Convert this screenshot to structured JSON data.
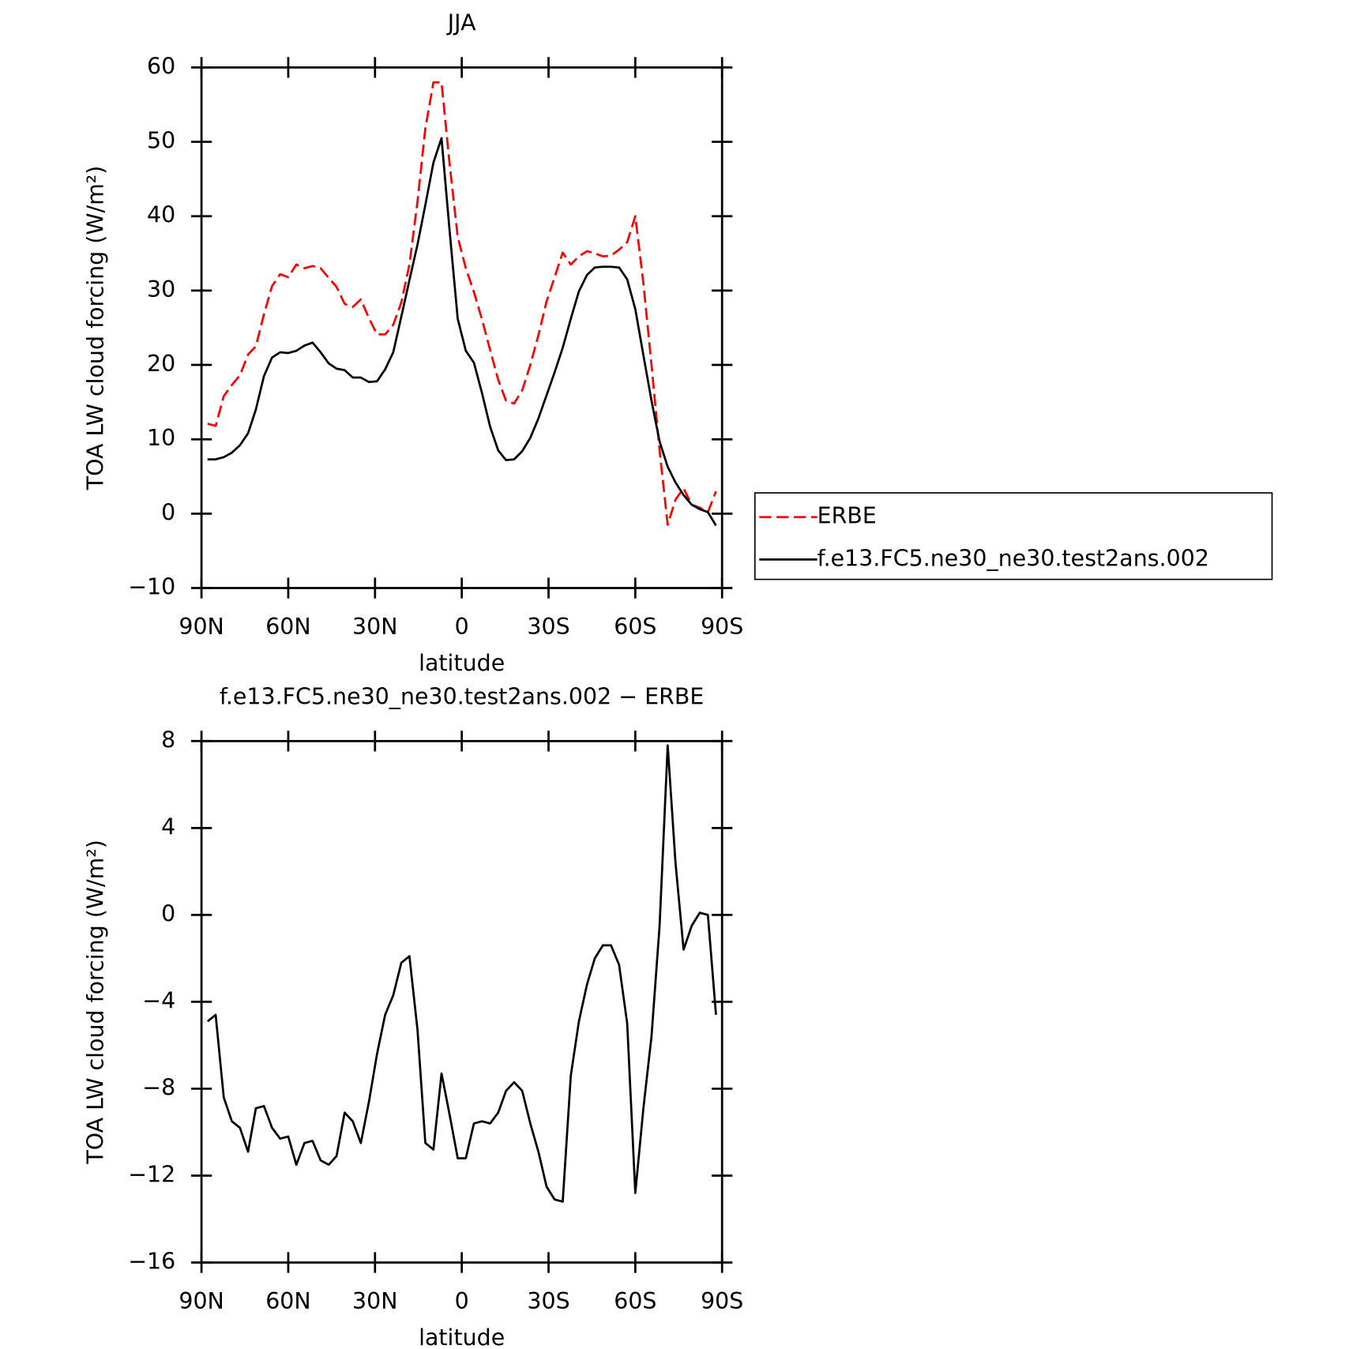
{
  "chart_data": [
    {
      "type": "line",
      "title": "JJA",
      "xlabel": "latitude",
      "ylabel": "TOA LW cloud forcing (W/m²)",
      "x": [
        87.9,
        85.1,
        82.3,
        79.5,
        76.7,
        73.9,
        71.2,
        68.4,
        65.6,
        62.8,
        60.0,
        57.2,
        54.4,
        51.6,
        48.8,
        46.0,
        43.3,
        40.5,
        37.7,
        34.9,
        32.1,
        29.3,
        26.5,
        23.7,
        20.9,
        18.1,
        15.3,
        12.6,
        9.8,
        7.0,
        4.2,
        1.4,
        -1.4,
        -4.2,
        -7.0,
        -9.8,
        -12.6,
        -15.3,
        -18.1,
        -20.9,
        -23.7,
        -26.5,
        -29.3,
        -32.1,
        -34.9,
        -37.7,
        -40.5,
        -43.3,
        -46.0,
        -48.8,
        -51.6,
        -54.4,
        -57.2,
        -60.0,
        -62.8,
        -65.6,
        -68.4,
        -71.2,
        -73.9,
        -76.7,
        -79.5,
        -82.3,
        -85.1,
        -87.9
      ],
      "series": [
        {
          "name": "ERBE",
          "color": "#ff0000",
          "line_style": "dashed",
          "values": [
            12.1,
            11.8,
            15.8,
            17.3,
            18.6,
            21.4,
            22.5,
            26.8,
            30.6,
            32.2,
            31.8,
            33.5,
            33.0,
            33.3,
            33.0,
            31.7,
            30.5,
            28.2,
            27.8,
            28.8,
            26.3,
            24.1,
            24.1,
            25.4,
            28.4,
            33.5,
            42.0,
            51.8,
            58.0,
            58.0,
            47.0,
            37.2,
            33.0,
            29.8,
            26.1,
            22.0,
            18.0,
            15.2,
            14.8,
            16.6,
            20.0,
            24.0,
            28.5,
            31.8,
            35.1,
            33.5,
            34.6,
            35.3,
            35.0,
            34.6,
            34.7,
            35.5,
            36.5,
            40.0,
            31.0,
            20.0,
            8.5,
            -1.5,
            1.9,
            3.4,
            1.2,
            0.8,
            0.2,
            3.0
          ]
        },
        {
          "name": "f.e13.FC5.ne30_ne30.test2ans.002",
          "color": "#000000",
          "line_style": "solid",
          "values": [
            7.3,
            7.3,
            7.6,
            8.2,
            9.2,
            10.8,
            14.0,
            18.5,
            21.0,
            21.7,
            21.6,
            21.9,
            22.6,
            23.0,
            21.7,
            20.2,
            19.5,
            19.3,
            18.3,
            18.3,
            17.7,
            17.8,
            19.4,
            21.7,
            26.5,
            31.4,
            36.2,
            41.5,
            47.2,
            50.5,
            38.0,
            26.2,
            21.9,
            20.3,
            16.2,
            11.7,
            8.5,
            7.2,
            7.3,
            8.4,
            10.2,
            12.8,
            15.9,
            19.0,
            22.3,
            26.2,
            29.9,
            32.1,
            33.1,
            33.2,
            33.2,
            33.1,
            31.5,
            27.5,
            21.3,
            15.2,
            9.7,
            6.3,
            4.2,
            2.5,
            1.2,
            0.6,
            0.2,
            -1.6
          ]
        }
      ],
      "xlim": [
        90,
        -90
      ],
      "xticks": [
        {
          "value": 90,
          "label": "90N"
        },
        {
          "value": 60,
          "label": "60N"
        },
        {
          "value": 30,
          "label": "30N"
        },
        0,
        {
          "value": -30,
          "label": "30S"
        },
        {
          "value": -60,
          "label": "60S"
        },
        {
          "value": -90,
          "label": "90S"
        }
      ],
      "ylim": [
        -10,
        60
      ],
      "yticks": [
        60,
        50,
        40,
        30,
        20,
        10,
        0,
        {
          "value": -10,
          "label": "−10"
        }
      ],
      "legend": "right"
    },
    {
      "type": "line",
      "title": "f.e13.FC5.ne30_ne30.test2ans.002 − ERBE",
      "xlabel": "latitude",
      "ylabel": "TOA LW cloud forcing (W/m²)",
      "x": [
        87.9,
        85.1,
        82.3,
        79.5,
        76.7,
        73.9,
        71.2,
        68.4,
        65.6,
        62.8,
        60.0,
        57.2,
        54.4,
        51.6,
        48.8,
        46.0,
        43.3,
        40.5,
        37.7,
        34.9,
        32.1,
        29.3,
        26.5,
        23.7,
        20.9,
        18.1,
        15.3,
        12.6,
        9.8,
        7.0,
        4.2,
        1.4,
        -1.4,
        -4.2,
        -7.0,
        -9.8,
        -12.6,
        -15.3,
        -18.1,
        -20.9,
        -23.7,
        -26.5,
        -29.3,
        -32.1,
        -34.9,
        -37.7,
        -40.5,
        -43.3,
        -46.0,
        -48.8,
        -51.6,
        -54.4,
        -57.2,
        -60.0,
        -62.8,
        -65.6,
        -68.4,
        -71.2,
        -73.9,
        -76.7,
        -79.5,
        -82.3,
        -85.1,
        -87.9
      ],
      "series": [
        {
          "color": "#000000",
          "line_style": "solid",
          "values": [
            -4.9,
            -4.6,
            -8.4,
            -9.5,
            -9.8,
            -10.9,
            -8.9,
            -8.8,
            -9.8,
            -10.3,
            -10.2,
            -11.5,
            -10.5,
            -10.4,
            -11.3,
            -11.5,
            -11.1,
            -9.1,
            -9.5,
            -10.5,
            -8.6,
            -6.4,
            -4.6,
            -3.7,
            -2.2,
            -1.9,
            -5.3,
            -10.5,
            -10.8,
            -7.3,
            -9.2,
            -11.2,
            -11.2,
            -9.6,
            -9.5,
            -9.6,
            -9.1,
            -8.1,
            -7.7,
            -8.1,
            -9.6,
            -10.9,
            -12.5,
            -13.1,
            -13.2,
            -7.4,
            -4.9,
            -3.2,
            -2.0,
            -1.4,
            -1.4,
            -2.3,
            -5.0,
            -12.8,
            -8.9,
            -5.6,
            -0.5,
            7.8,
            2.4,
            -1.6,
            -0.5,
            0.1,
            0.0,
            -4.6
          ]
        }
      ],
      "xlim": [
        90,
        -90
      ],
      "xticks": [
        {
          "value": 90,
          "label": "90N"
        },
        {
          "value": 60,
          "label": "60N"
        },
        {
          "value": 30,
          "label": "30N"
        },
        0,
        {
          "value": -30,
          "label": "30S"
        },
        {
          "value": -60,
          "label": "60S"
        },
        {
          "value": -90,
          "label": "90S"
        }
      ],
      "ylim": [
        -16,
        8
      ],
      "yticks": [
        8,
        4,
        0,
        {
          "value": -4,
          "label": "−4"
        },
        {
          "value": -8,
          "label": "−8"
        },
        {
          "value": -12,
          "label": "−12"
        },
        {
          "value": -16,
          "label": "−16"
        }
      ]
    }
  ]
}
